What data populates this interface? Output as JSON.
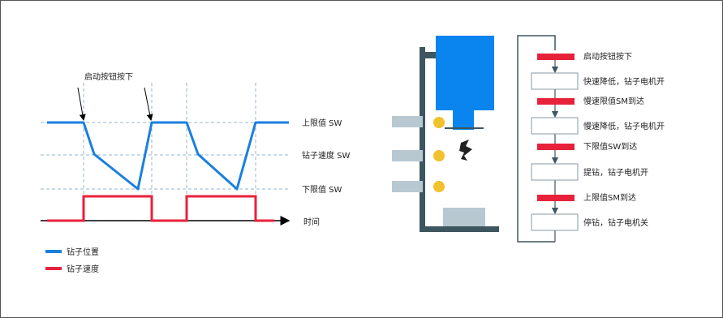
{
  "timing": {
    "start_label": "启动按钮按下",
    "upper_limit_label": "上限值 SW",
    "drill_speed_label": "钻子速度 SW",
    "lower_limit_label": "下限值 SW",
    "time_label": "时间"
  },
  "legend": [
    {
      "label": "钻子位置",
      "color": "#1a7fe0"
    },
    {
      "label": "钻子速度",
      "color": "#e8213b"
    }
  ],
  "flow": {
    "steps": [
      {
        "type": "signal",
        "label": "启动按钮按下"
      },
      {
        "type": "action",
        "label": "快速降低，钻子电机开"
      },
      {
        "type": "signal",
        "label": "慢速限值SM到达"
      },
      {
        "type": "action",
        "label": "慢速降低，钻子电机开"
      },
      {
        "type": "signal",
        "label": "下限值SW到达"
      },
      {
        "type": "action",
        "label": "提钻，钻子电机开"
      },
      {
        "type": "signal",
        "label": "上限值SM到达"
      },
      {
        "type": "action",
        "label": "停钻，钻子电机关"
      }
    ]
  },
  "colors": {
    "position": "#1a7fe0",
    "speed": "#e8213b",
    "machine_blue": "#0a84ee",
    "frame_dark": "#3d5660",
    "sensor_yellow": "#f2c12e",
    "switch_gray": "#b7c8d1"
  }
}
